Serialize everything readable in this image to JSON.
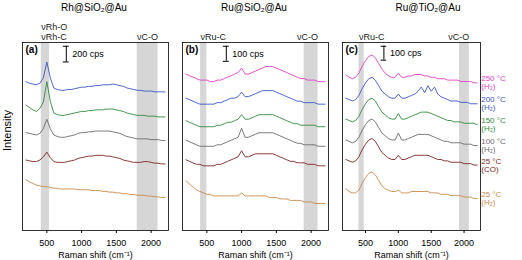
{
  "chart_data": [
    {
      "type": "line",
      "title": "Rh@SiO₂@Au",
      "panel_label": "(a)",
      "x_label": "Raman shift (cm⁻¹)",
      "y_label": "Intensity",
      "tick_labels": "x",
      "xlim": [
        150,
        2250
      ],
      "xticks": [
        500,
        1000,
        1500,
        2000
      ],
      "ylim": [
        0,
        2400
      ],
      "scale_bar": {
        "value": 200,
        "label": "200 cps"
      },
      "bands": [
        {
          "range": [
            420,
            540
          ],
          "labels": [
            "νRh-C",
            "νRh-O"
          ]
        },
        {
          "range": [
            1800,
            2100
          ],
          "labels": [
            "νC-O"
          ]
        }
      ],
      "x": [
        200,
        250,
        300,
        350,
        400,
        450,
        500,
        550,
        600,
        650,
        700,
        750,
        800,
        850,
        900,
        950,
        1000,
        1050,
        1100,
        1150,
        1200,
        1250,
        1300,
        1350,
        1400,
        1450,
        1500,
        1550,
        1600,
        1650,
        1700,
        1750,
        1800,
        1850,
        1900,
        1950,
        2000,
        2050,
        2100,
        2150,
        2200
      ],
      "series": [
        {
          "color": "#3a55c8",
          "values": [
            1900,
            1880,
            1870,
            1860,
            1880,
            1950,
            2150,
            1950,
            1820,
            1800,
            1790,
            1790,
            1800,
            1800,
            1810,
            1820,
            1830,
            1830,
            1840,
            1840,
            1850,
            1850,
            1860,
            1860,
            1860,
            1870,
            1860,
            1850,
            1840,
            1820,
            1810,
            1800,
            1790,
            1790,
            1780,
            1780,
            1780,
            1770,
            1770,
            1770,
            1770
          ]
        },
        {
          "color": "#2f8a3c",
          "values": [
            1600,
            1570,
            1540,
            1520,
            1560,
            1640,
            1900,
            1650,
            1500,
            1480,
            1470,
            1470,
            1480,
            1490,
            1500,
            1510,
            1520,
            1520,
            1530,
            1530,
            1540,
            1540,
            1540,
            1550,
            1550,
            1550,
            1540,
            1530,
            1520,
            1500,
            1490,
            1480,
            1470,
            1470,
            1470,
            1460,
            1460,
            1460,
            1450,
            1450,
            1450
          ]
        },
        {
          "color": "#6b6b6b",
          "values": [
            1250,
            1240,
            1230,
            1220,
            1240,
            1300,
            1420,
            1300,
            1220,
            1200,
            1190,
            1190,
            1200,
            1210,
            1220,
            1240,
            1250,
            1250,
            1260,
            1260,
            1270,
            1270,
            1270,
            1270,
            1270,
            1260,
            1250,
            1240,
            1220,
            1200,
            1190,
            1180,
            1170,
            1170,
            1170,
            1170,
            1160,
            1160,
            1160,
            1150,
            1150
          ]
        },
        {
          "color": "#7b2424",
          "values": [
            900,
            890,
            880,
            880,
            900,
            940,
            1000,
            930,
            880,
            870,
            870,
            870,
            880,
            890,
            900,
            920,
            930,
            940,
            950,
            950,
            960,
            960,
            960,
            950,
            950,
            940,
            930,
            920,
            900,
            890,
            880,
            870,
            870,
            870,
            880,
            880,
            870,
            860,
            860,
            850,
            850
          ]
        },
        {
          "color": "#c8894a",
          "values": [
            650,
            620,
            600,
            580,
            570,
            560,
            560,
            550,
            540,
            540,
            530,
            530,
            530,
            530,
            530,
            520,
            520,
            520,
            520,
            510,
            510,
            510,
            500,
            500,
            490,
            490,
            480,
            480,
            470,
            470,
            460,
            460,
            450,
            450,
            450,
            440,
            440,
            430,
            430,
            420,
            420
          ]
        }
      ]
    },
    {
      "type": "line",
      "title": "Ru@SiO₂@Au",
      "panel_label": "(b)",
      "x_label": "Raman shift (cm⁻¹)",
      "tick_labels": "x",
      "xlim": [
        150,
        2250
      ],
      "xticks": [
        500,
        1000,
        1500,
        2000
      ],
      "ylim": [
        0,
        1250
      ],
      "scale_bar": {
        "value": 100,
        "label": "100 cps"
      },
      "bands": [
        {
          "range": [
            410,
            500
          ],
          "labels": [
            "νRu-C"
          ]
        },
        {
          "range": [
            1900,
            2100
          ],
          "labels": [
            "νC-O"
          ]
        }
      ],
      "x": [
        200,
        250,
        300,
        350,
        400,
        450,
        500,
        550,
        600,
        650,
        700,
        750,
        800,
        850,
        900,
        950,
        1000,
        1050,
        1100,
        1150,
        1200,
        1250,
        1300,
        1350,
        1400,
        1450,
        1500,
        1550,
        1600,
        1650,
        1700,
        1750,
        1800,
        1850,
        1900,
        1950,
        2000,
        2050,
        2100,
        2150,
        2200
      ],
      "series": [
        {
          "color": "#e040c8",
          "values": [
            1040,
            1030,
            1020,
            1010,
            1000,
            1000,
            1000,
            990,
            990,
            1000,
            1000,
            1010,
            1020,
            1030,
            1040,
            1050,
            1080,
            1040,
            1040,
            1050,
            1060,
            1070,
            1080,
            1090,
            1090,
            1090,
            1080,
            1070,
            1060,
            1050,
            1040,
            1030,
            1020,
            1010,
            1010,
            1000,
            1000,
            1000,
            990,
            990,
            990
          ]
        },
        {
          "color": "#3a55c8",
          "values": [
            880,
            870,
            860,
            850,
            840,
            840,
            840,
            840,
            840,
            850,
            850,
            860,
            870,
            880,
            880,
            890,
            920,
            890,
            890,
            900,
            910,
            920,
            930,
            930,
            930,
            930,
            920,
            910,
            900,
            890,
            880,
            870,
            860,
            860,
            850,
            850,
            850,
            850,
            840,
            840,
            840
          ]
        },
        {
          "color": "#2f8a3c",
          "values": [
            730,
            720,
            710,
            700,
            690,
            690,
            690,
            690,
            690,
            700,
            700,
            710,
            720,
            720,
            730,
            740,
            770,
            740,
            740,
            750,
            760,
            770,
            770,
            770,
            770,
            770,
            760,
            750,
            740,
            730,
            720,
            710,
            710,
            700,
            700,
            700,
            700,
            700,
            690,
            690,
            690
          ]
        },
        {
          "color": "#6b6b6b",
          "values": [
            600,
            590,
            580,
            570,
            560,
            560,
            560,
            560,
            560,
            570,
            570,
            580,
            590,
            600,
            610,
            620,
            680,
            620,
            620,
            630,
            640,
            650,
            650,
            650,
            650,
            650,
            640,
            630,
            620,
            610,
            600,
            590,
            580,
            580,
            570,
            570,
            570,
            570,
            560,
            560,
            560
          ]
        },
        {
          "color": "#7b2424",
          "values": [
            470,
            460,
            450,
            440,
            440,
            430,
            430,
            430,
            430,
            440,
            440,
            450,
            460,
            470,
            480,
            490,
            530,
            490,
            490,
            500,
            510,
            510,
            510,
            510,
            510,
            510,
            500,
            490,
            480,
            470,
            460,
            460,
            450,
            450,
            450,
            440,
            440,
            440,
            430,
            430,
            430
          ]
        },
        {
          "color": "#c8894a",
          "values": [
            330,
            310,
            290,
            270,
            260,
            250,
            240,
            240,
            230,
            230,
            230,
            230,
            230,
            230,
            230,
            230,
            250,
            230,
            230,
            230,
            230,
            230,
            230,
            230,
            220,
            220,
            220,
            210,
            210,
            210,
            200,
            200,
            200,
            200,
            190,
            190,
            190,
            180,
            180,
            180,
            180
          ]
        }
      ]
    },
    {
      "type": "line",
      "title": "Ru@TiO₂@Au",
      "panel_label": "(c)",
      "x_label": "Raman shift (cm⁻¹)",
      "tick_labels": "x",
      "legend": "right",
      "xlim": [
        150,
        2250
      ],
      "xticks": [
        500,
        1000,
        1500,
        2000
      ],
      "ylim": [
        0,
        1350
      ],
      "scale_bar": {
        "value": 100,
        "label": "100 cps"
      },
      "bands": [
        {
          "range": [
            400,
            480
          ],
          "labels": [
            "νRu-C"
          ]
        },
        {
          "range": [
            1930,
            2080
          ],
          "labels": [
            "νC-O"
          ]
        }
      ],
      "x": [
        200,
        250,
        300,
        350,
        400,
        450,
        500,
        550,
        600,
        650,
        700,
        750,
        800,
        850,
        900,
        950,
        1000,
        1050,
        1100,
        1150,
        1200,
        1250,
        1300,
        1350,
        1400,
        1450,
        1500,
        1550,
        1600,
        1650,
        1700,
        1750,
        1800,
        1850,
        1900,
        1950,
        2000,
        2050,
        2100,
        2150,
        2200
      ],
      "series": [
        {
          "name": "250 °C (H₂)",
          "color": "#e040c8",
          "values": [
            1120,
            1100,
            1090,
            1100,
            1130,
            1180,
            1220,
            1250,
            1260,
            1240,
            1200,
            1160,
            1130,
            1110,
            1100,
            1100,
            1130,
            1100,
            1100,
            1110,
            1110,
            1120,
            1120,
            1120,
            1110,
            1110,
            1100,
            1100,
            1090,
            1090,
            1090,
            1080,
            1080,
            1080,
            1080,
            1070,
            1070,
            1070,
            1070,
            1060,
            1060
          ]
        },
        {
          "name": "200 °C (H₂)",
          "color": "#3a55c8",
          "values": [
            950,
            940,
            930,
            940,
            970,
            1020,
            1060,
            1090,
            1100,
            1080,
            1040,
            1000,
            980,
            960,
            950,
            950,
            980,
            950,
            950,
            960,
            970,
            980,
            1000,
            1030,
            990,
            1040,
            1000,
            1030,
            980,
            960,
            950,
            940,
            930,
            930,
            930,
            920,
            920,
            920,
            910,
            910,
            910
          ]
        },
        {
          "name": "150 °C (H₂)",
          "color": "#2f8a3c",
          "values": [
            800,
            790,
            780,
            790,
            820,
            870,
            910,
            940,
            950,
            930,
            890,
            850,
            830,
            810,
            800,
            800,
            840,
            800,
            800,
            810,
            820,
            830,
            840,
            850,
            850,
            850,
            840,
            830,
            820,
            810,
            800,
            790,
            790,
            780,
            780,
            780,
            770,
            770,
            770,
            770,
            760
          ]
        },
        {
          "name": "100 °C (H₂)",
          "color": "#6b6b6b",
          "values": [
            650,
            640,
            630,
            640,
            670,
            720,
            760,
            790,
            800,
            780,
            740,
            700,
            680,
            660,
            650,
            650,
            700,
            650,
            650,
            660,
            670,
            680,
            690,
            690,
            690,
            690,
            680,
            670,
            660,
            650,
            640,
            640,
            630,
            630,
            630,
            630,
            620,
            620,
            620,
            610,
            610
          ]
        },
        {
          "name": "25 °C (CO)",
          "color": "#7b2424",
          "values": [
            510,
            500,
            490,
            500,
            530,
            580,
            620,
            650,
            660,
            640,
            600,
            560,
            540,
            520,
            510,
            510,
            540,
            510,
            510,
            520,
            530,
            540,
            540,
            540,
            540,
            540,
            530,
            520,
            510,
            510,
            500,
            500,
            490,
            490,
            490,
            490,
            480,
            480,
            480,
            470,
            470
          ]
        },
        {
          "name": "25 °C (H₂)",
          "color": "#c8894a",
          "values": [
            300,
            280,
            270,
            270,
            290,
            340,
            380,
            410,
            420,
            400,
            360,
            320,
            300,
            290,
            280,
            280,
            290,
            270,
            270,
            270,
            280,
            280,
            280,
            280,
            280,
            280,
            270,
            270,
            270,
            260,
            260,
            260,
            250,
            250,
            250,
            250,
            240,
            240,
            240,
            230,
            230
          ]
        }
      ]
    }
  ]
}
